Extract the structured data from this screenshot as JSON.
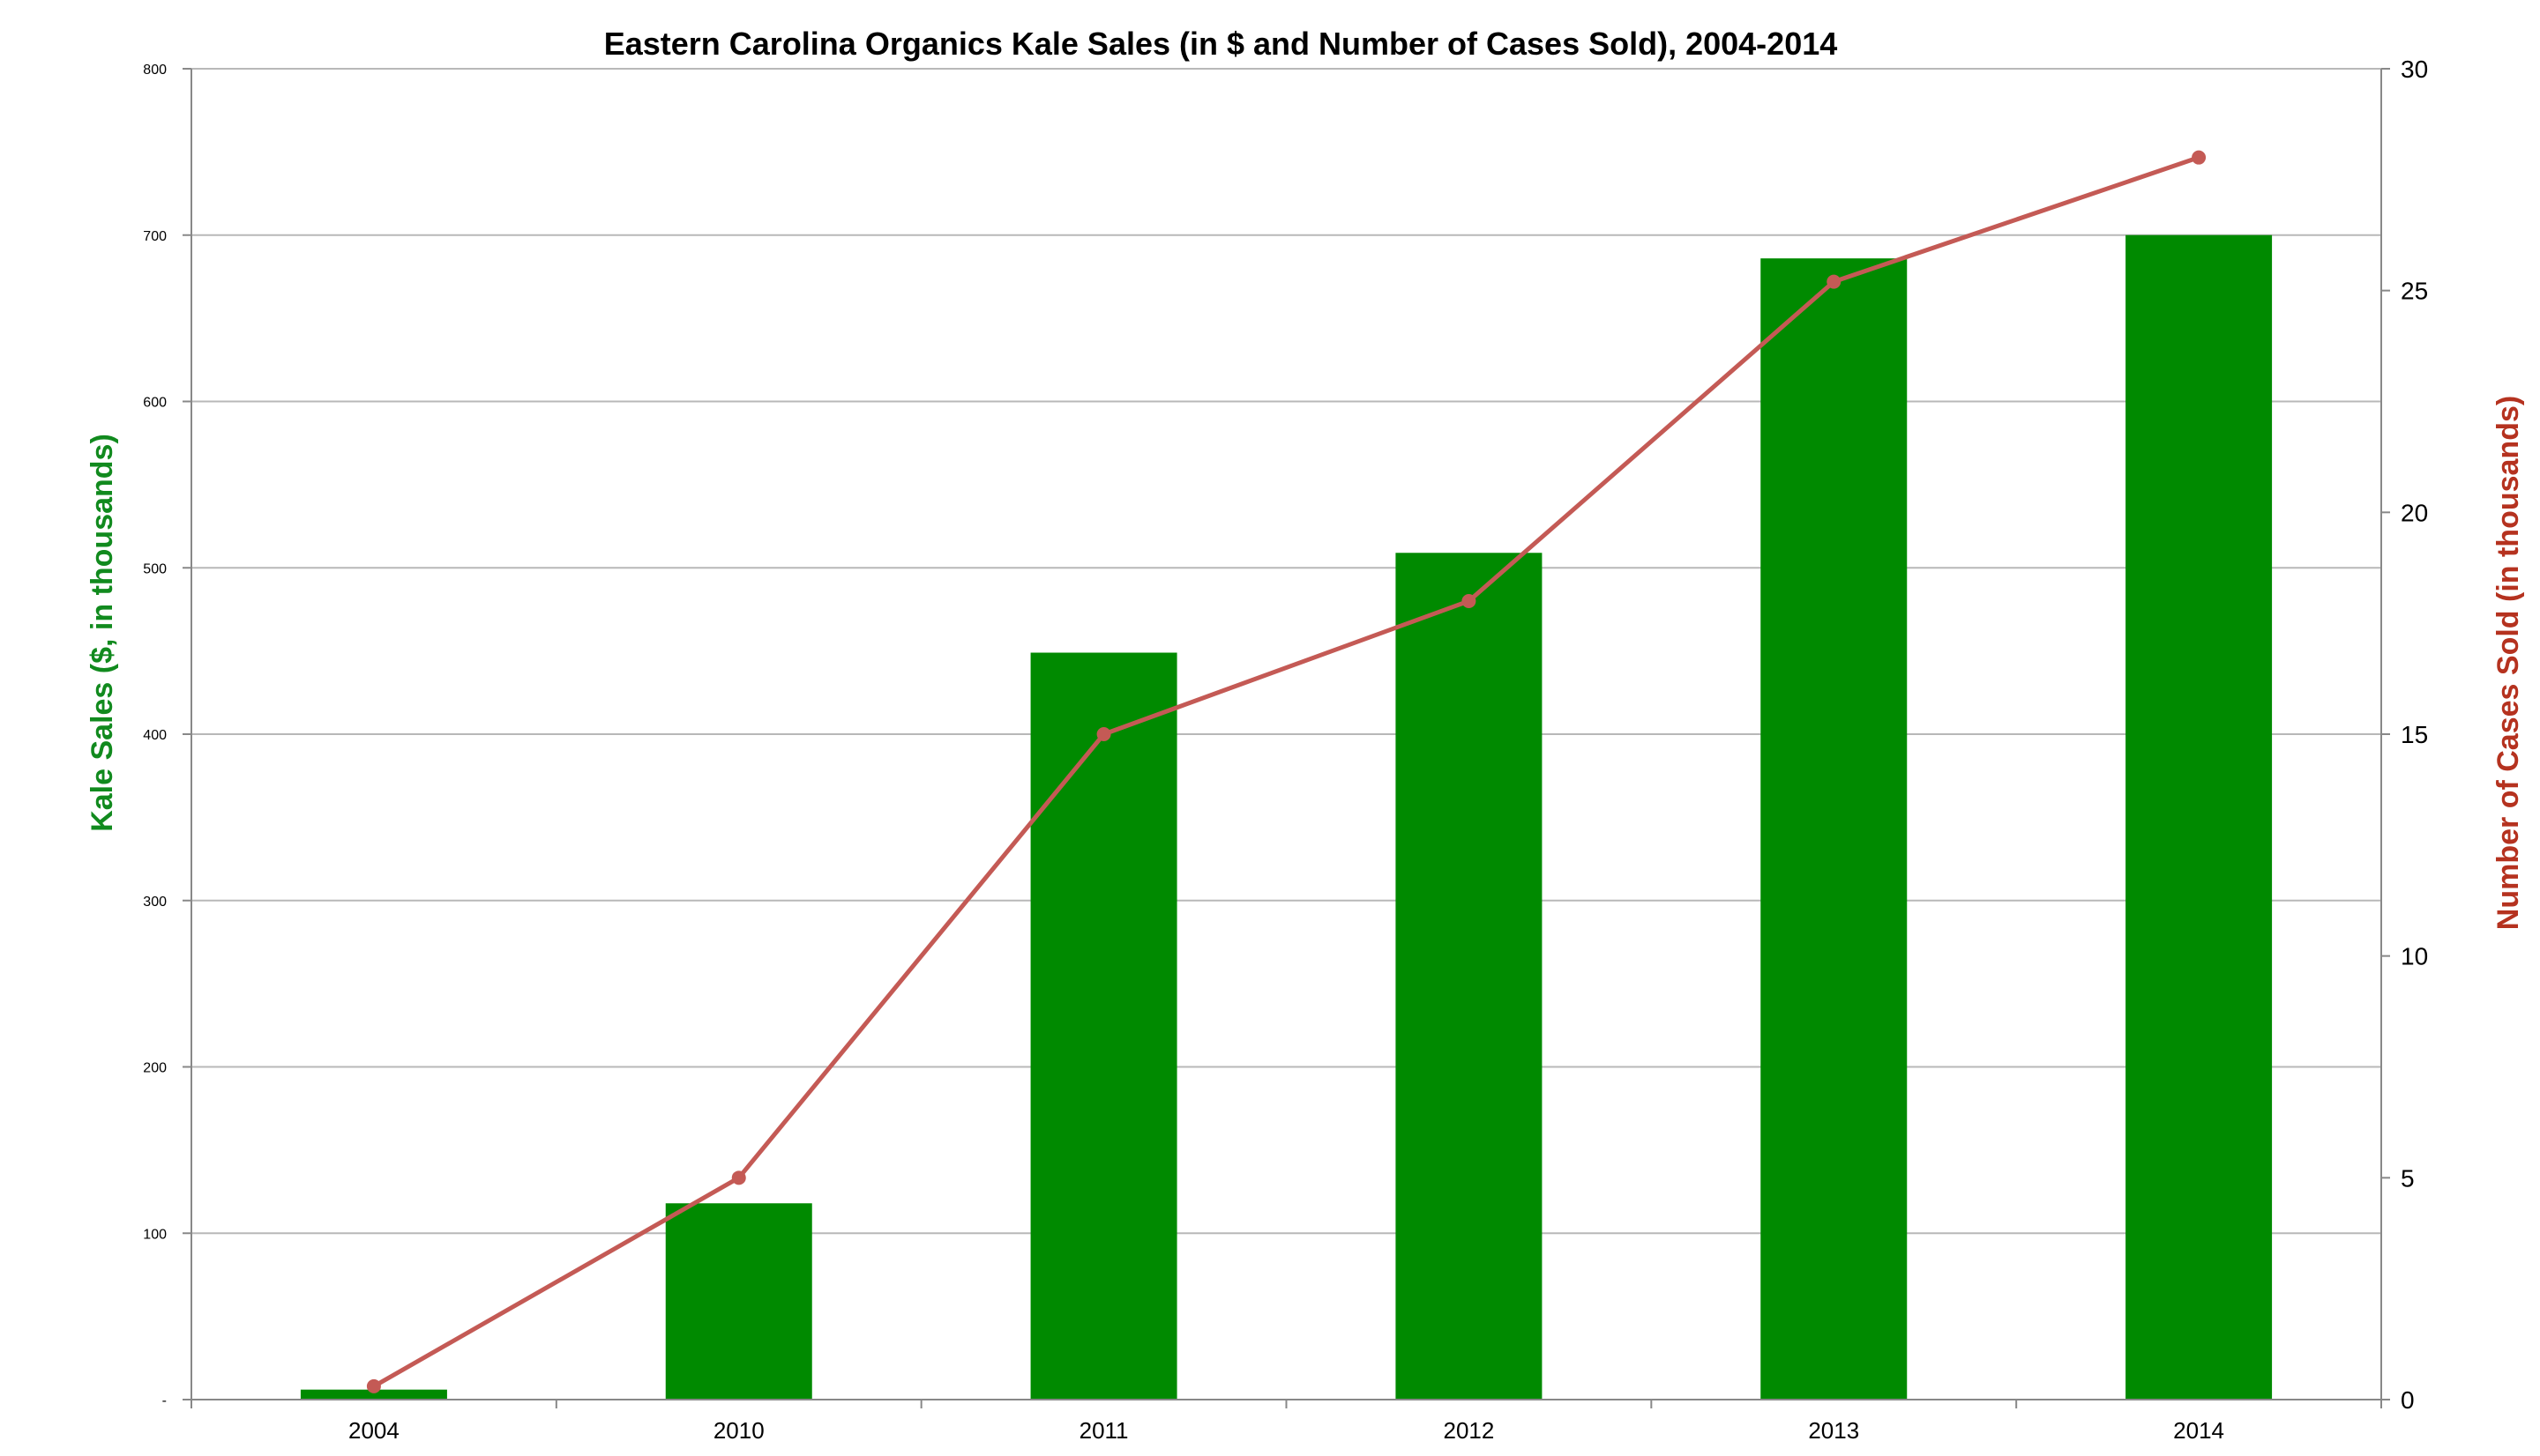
{
  "chart_data": {
    "type": "bar",
    "title": "Eastern Carolina Organics Kale Sales (in $ and Number of Cases Sold), 2004-2014",
    "categories": [
      "2004",
      "2010",
      "2011",
      "2012",
      "2013",
      "2014"
    ],
    "series": [
      {
        "name": "Kale Sales",
        "type": "bar",
        "axis": "left",
        "color": "#008a00",
        "values": [
          6,
          118,
          449,
          509,
          686,
          700
        ]
      },
      {
        "name": "Cases Sold",
        "type": "line",
        "axis": "right",
        "color": "#c45a55",
        "values": [
          0.3,
          5,
          15,
          18,
          25.2,
          28
        ]
      }
    ],
    "y_left": {
      "label": "Kale Sales ($, in thousands)",
      "label_color": "#118a1e",
      "range": [
        0,
        800
      ],
      "ticks": [
        "-",
        "100",
        "200",
        "300",
        "400",
        "500",
        "600",
        "700",
        "800"
      ]
    },
    "y_right": {
      "label": "Number of Cases Sold (in thousands)",
      "label_color": "#b5321f",
      "range": [
        0,
        30
      ],
      "ticks": [
        "0",
        "5",
        "10",
        "15",
        "20",
        "25",
        "30"
      ]
    },
    "xlabel": "",
    "grid": true,
    "gridline_color": "#b8b8b8",
    "legend": "none"
  }
}
